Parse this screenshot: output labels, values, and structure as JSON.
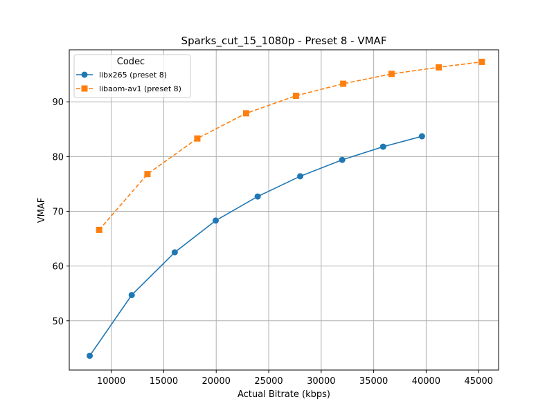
{
  "chart_data": {
    "type": "line",
    "title": "Sparks_cut_15_1080p - Preset 8 - VMAF",
    "xlabel": "Actual Bitrate (kbps)",
    "ylabel": "VMAF",
    "xlim": [
      6000,
      46900
    ],
    "ylim": [
      41.0,
      99.5
    ],
    "xticks": [
      10000,
      15000,
      20000,
      25000,
      30000,
      35000,
      40000,
      45000
    ],
    "xtick_labels": [
      "10000",
      "15000",
      "20000",
      "25000",
      "30000",
      "35000",
      "40000",
      "45000"
    ],
    "yticks": [
      50,
      60,
      70,
      80,
      90
    ],
    "ytick_labels": [
      "50",
      "60",
      "70",
      "80",
      "90"
    ],
    "grid": true,
    "legend": {
      "title": "Codec",
      "position": "top-left"
    },
    "series": [
      {
        "name": "libx265 (preset 8)",
        "color": "#1f77b4",
        "marker": "circle",
        "linestyle": "solid",
        "x": [
          7950,
          11950,
          16050,
          19950,
          23950,
          28000,
          32000,
          35900,
          39600
        ],
        "y": [
          43.6,
          54.7,
          62.5,
          68.3,
          72.7,
          76.4,
          79.4,
          81.8,
          83.7
        ]
      },
      {
        "name": "libaom-av1 (preset 8)",
        "color": "#ff7f0e",
        "marker": "square",
        "linestyle": "dashed",
        "x": [
          8850,
          13450,
          18200,
          22850,
          27600,
          32100,
          36700,
          41200,
          45300
        ],
        "y": [
          66.6,
          76.8,
          83.3,
          87.9,
          91.1,
          93.3,
          95.1,
          96.3,
          97.3
        ]
      }
    ]
  }
}
